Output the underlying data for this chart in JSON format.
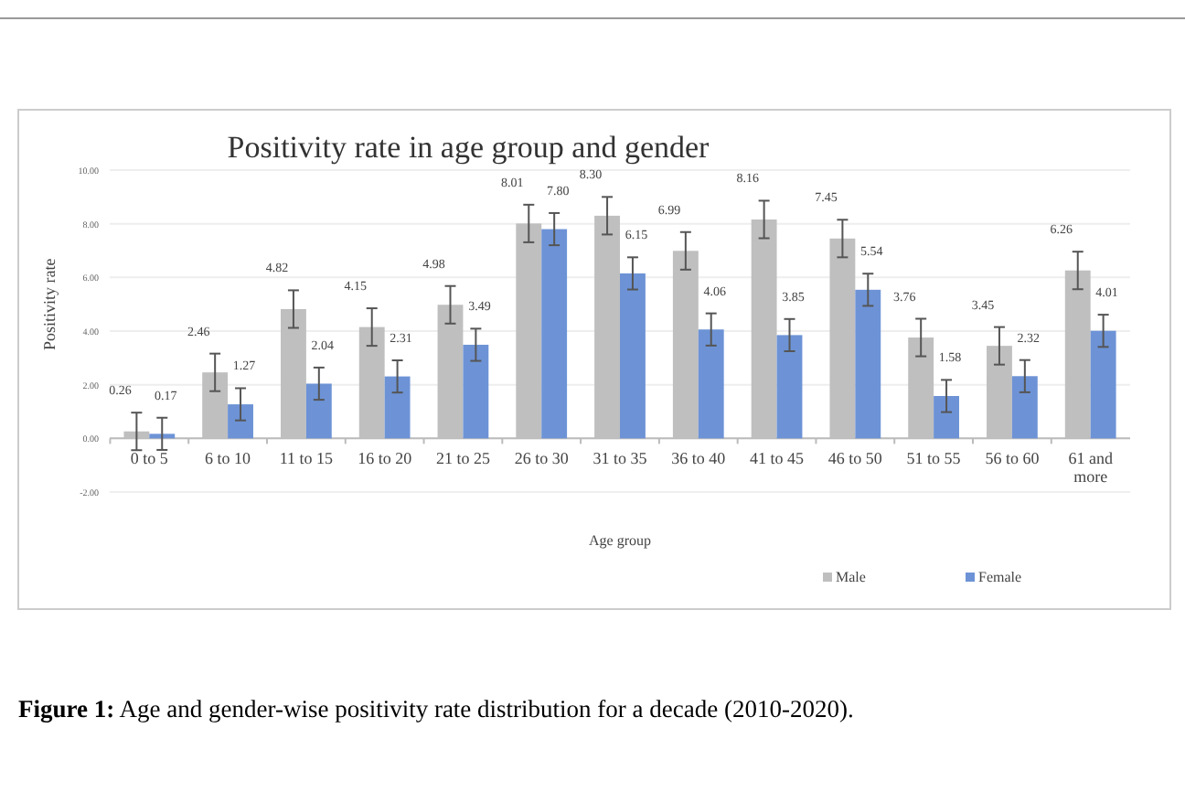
{
  "chart_data": {
    "type": "bar",
    "title": "Positivity rate in age group and gender",
    "xlabel": "Age group",
    "ylabel": "Positivity rate",
    "categories": [
      "0 to 5",
      "6 to 10",
      "11 to 15",
      "16 to 20",
      "21 to 25",
      "26 to 30",
      "31 to 35",
      "36 to 40",
      "41 to 45",
      "46 to 50",
      "51 to 55",
      "56 to 60",
      "61 and more"
    ],
    "series": [
      {
        "name": "Male",
        "color": "#bfbfbf",
        "values": [
          0.26,
          2.46,
          4.82,
          4.15,
          4.98,
          8.01,
          8.3,
          6.99,
          8.16,
          7.45,
          3.76,
          3.45,
          6.26
        ],
        "errors": [
          0.7,
          0.7,
          0.7,
          0.7,
          0.7,
          0.7,
          0.7,
          0.7,
          0.7,
          0.7,
          0.7,
          0.7,
          0.7
        ],
        "value_labels": [
          "0.26",
          "2.46",
          "4.82",
          "4.15",
          "4.98",
          "8.01",
          "8.30",
          "6.99",
          "8.16",
          "7.45",
          "3.76",
          "3.45",
          "6.26"
        ]
      },
      {
        "name": "Female",
        "color": "#6d93d6",
        "values": [
          0.17,
          1.27,
          2.04,
          2.31,
          3.49,
          7.8,
          6.15,
          4.06,
          3.85,
          5.54,
          1.58,
          2.32,
          4.01
        ],
        "errors": [
          0.6,
          0.6,
          0.6,
          0.6,
          0.6,
          0.6,
          0.6,
          0.6,
          0.6,
          0.6,
          0.6,
          0.6,
          0.6
        ],
        "value_labels": [
          "0.17",
          "1.27",
          "2.04",
          "2.31",
          "3.49",
          "7.80",
          "6.15",
          "4.06",
          "3.85",
          "5.54",
          "1.58",
          "2.32",
          "4.01"
        ]
      }
    ],
    "ylim": [
      -2,
      10
    ],
    "yticks": [
      {
        "value": -2,
        "label": "-2.00"
      },
      {
        "value": 0,
        "label": "0.00"
      },
      {
        "value": 2,
        "label": "2.00"
      },
      {
        "value": 4,
        "label": "4.00"
      },
      {
        "value": 6,
        "label": "6.00"
      },
      {
        "value": 8,
        "label": "8.00"
      },
      {
        "value": 10,
        "label": "10.00"
      }
    ],
    "grid": "y",
    "legend": "bottom right",
    "annotations": [
      "Figure 1:",
      "Age and gender-wise positivity rate distribution for a decade (2010-2020)."
    ]
  }
}
